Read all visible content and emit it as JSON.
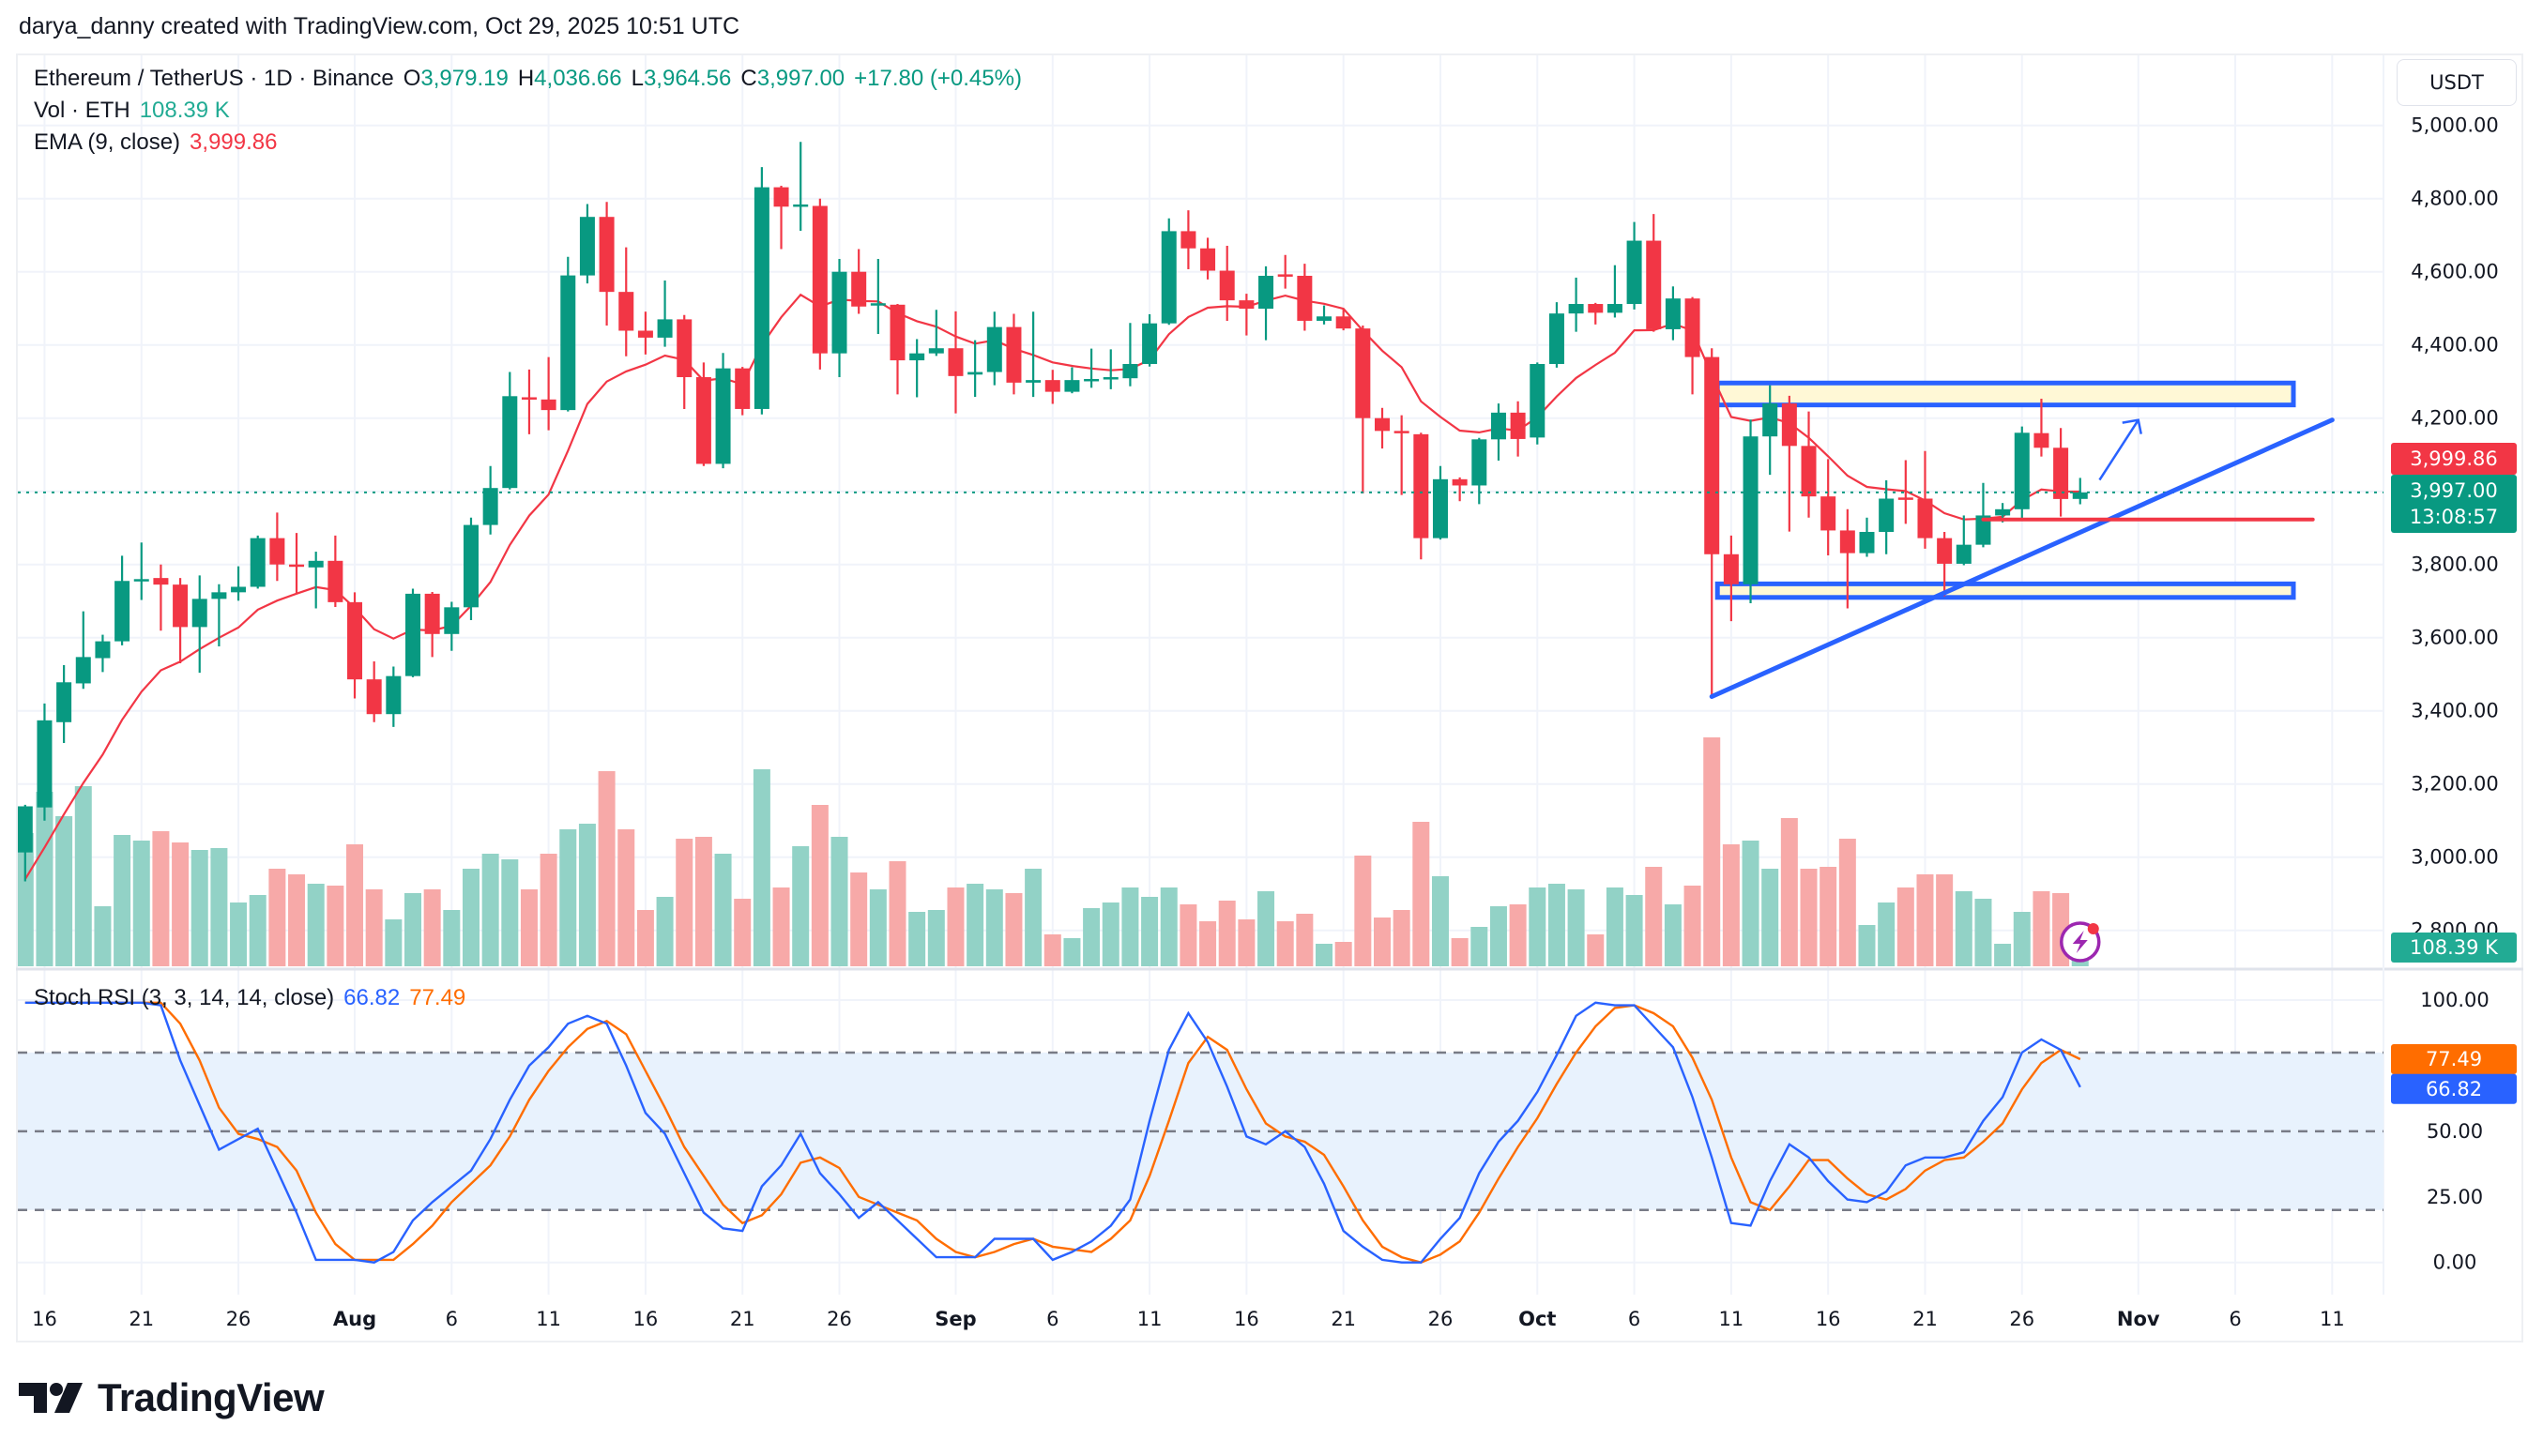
{
  "attribution": "darya_danny created with TradingView.com, Oct 29, 2025 10:51 UTC",
  "legend": {
    "symbol": "Ethereum / TetherUS · 1D · Binance",
    "ohlc": [
      {
        "k": "O",
        "v": "3,979.19"
      },
      {
        "k": "H",
        "v": "4,036.66"
      },
      {
        "k": "L",
        "v": "3,964.56"
      },
      {
        "k": "C",
        "v": "3,997.00"
      }
    ],
    "change": "+17.80 (+0.45%)",
    "vol_label": "Vol · ETH",
    "vol_value": "108.39 K",
    "ema_label": "EMA (9, close)",
    "ema_value": "3,999.86"
  },
  "price_axis": {
    "currency": "USDT",
    "ema_badge": "3,999.86",
    "price_badge": "3,997.00",
    "countdown": "13:08:57",
    "volume_badge": "108.39 K"
  },
  "stoch": {
    "label": "Stoch RSI (3, 3, 14, 14, close)",
    "k_value": "66.82",
    "d_value": "77.49",
    "k_badge": "66.82",
    "d_badge": "77.49",
    "ticks": [
      {
        "label": "100.00",
        "value": 100
      },
      {
        "label": "50.00",
        "value": 50
      },
      {
        "label": "25.00",
        "value": 25
      },
      {
        "label": "0.00",
        "value": 0
      }
    ],
    "levels": [
      80,
      50,
      20
    ]
  },
  "brand": "TradingView",
  "colors": {
    "up": "#089981",
    "down": "#f23645",
    "volume_up": "#92d2c6",
    "volume_down": "#f7a9a8",
    "ema": "#f23645",
    "stoch_k": "#2962ff",
    "stoch_d": "#ff6d00",
    "drawing": "#2962ff",
    "zone_fill": "#fff8d6",
    "stoch_band": "#e8f2fd",
    "alert_icon": "#9c27b0"
  },
  "icons": {
    "alert": "lightning-alert-icon",
    "logo": "tradingview-logo-icon"
  },
  "chart_data": {
    "type": "candlestick",
    "title": "",
    "xlabel": "",
    "ylabel": "USDT",
    "ylim": [
      2750,
      5100
    ],
    "grid": true,
    "y_ticks": [
      {
        "label": "5,000.00",
        "value": 5000
      },
      {
        "label": "4,800.00",
        "value": 4800
      },
      {
        "label": "4,600.00",
        "value": 4600
      },
      {
        "label": "4,400.00",
        "value": 4400
      },
      {
        "label": "4,200.00",
        "value": 4200
      },
      {
        "label": "3,800.00",
        "value": 3800
      },
      {
        "label": "3,600.00",
        "value": 3600
      },
      {
        "label": "3,400.00",
        "value": 3400
      },
      {
        "label": "3,200.00",
        "value": 3200
      },
      {
        "label": "3,000.00",
        "value": 3000
      },
      {
        "label": "2,800.00",
        "value": 2800
      }
    ],
    "x_ticks": [
      {
        "label": "16",
        "date": "2025-07-16"
      },
      {
        "label": "21",
        "date": "2025-07-21"
      },
      {
        "label": "26",
        "date": "2025-07-26"
      },
      {
        "label": "Aug",
        "date": "2025-08-01",
        "bold": true
      },
      {
        "label": "6",
        "date": "2025-08-06"
      },
      {
        "label": "11",
        "date": "2025-08-11"
      },
      {
        "label": "16",
        "date": "2025-08-16"
      },
      {
        "label": "21",
        "date": "2025-08-21"
      },
      {
        "label": "26",
        "date": "2025-08-26"
      },
      {
        "label": "Sep",
        "date": "2025-09-01",
        "bold": true
      },
      {
        "label": "6",
        "date": "2025-09-06"
      },
      {
        "label": "11",
        "date": "2025-09-11"
      },
      {
        "label": "16",
        "date": "2025-09-16"
      },
      {
        "label": "21",
        "date": "2025-09-21"
      },
      {
        "label": "26",
        "date": "2025-09-26"
      },
      {
        "label": "Oct",
        "date": "2025-10-01",
        "bold": true
      },
      {
        "label": "6",
        "date": "2025-10-06"
      },
      {
        "label": "11",
        "date": "2025-10-11"
      },
      {
        "label": "16",
        "date": "2025-10-16"
      },
      {
        "label": "21",
        "date": "2025-10-21"
      },
      {
        "label": "26",
        "date": "2025-10-26"
      },
      {
        "label": "Nov",
        "date": "2025-11-01",
        "bold": true
      },
      {
        "label": "6",
        "date": "2025-11-06"
      },
      {
        "label": "11",
        "date": "2025-11-11"
      }
    ],
    "candle_fields": [
      "date",
      "open",
      "high",
      "low",
      "close",
      "volume_k"
    ],
    "candles": [
      [
        "2025-07-15",
        3013,
        3143,
        2934,
        3139,
        710
      ],
      [
        "2025-07-16",
        3136,
        3420,
        3100,
        3374,
        930
      ],
      [
        "2025-07-17",
        3369,
        3525,
        3312,
        3478,
        800
      ],
      [
        "2025-07-18",
        3475,
        3672,
        3460,
        3547,
        960
      ],
      [
        "2025-07-19",
        3544,
        3608,
        3506,
        3590,
        320
      ],
      [
        "2025-07-20",
        3590,
        3824,
        3579,
        3755,
        700
      ],
      [
        "2025-07-21",
        3755,
        3860,
        3703,
        3760,
        670
      ],
      [
        "2025-07-22",
        3763,
        3800,
        3619,
        3745,
        720
      ],
      [
        "2025-07-23",
        3745,
        3763,
        3530,
        3629,
        660
      ],
      [
        "2025-07-24",
        3629,
        3770,
        3504,
        3706,
        620
      ],
      [
        "2025-07-25",
        3706,
        3746,
        3576,
        3724,
        630
      ],
      [
        "2025-07-26",
        3724,
        3795,
        3701,
        3739,
        340
      ],
      [
        "2025-07-27",
        3739,
        3879,
        3734,
        3872,
        380
      ],
      [
        "2025-07-28",
        3872,
        3942,
        3755,
        3800,
        520
      ],
      [
        "2025-07-29",
        3800,
        3886,
        3720,
        3797,
        490
      ],
      [
        "2025-07-30",
        3792,
        3835,
        3680,
        3810,
        440
      ],
      [
        "2025-07-31",
        3810,
        3879,
        3684,
        3697,
        430
      ],
      [
        "2025-08-01",
        3697,
        3724,
        3434,
        3486,
        650
      ],
      [
        "2025-08-02",
        3486,
        3535,
        3369,
        3391,
        410
      ],
      [
        "2025-08-03",
        3391,
        3521,
        3356,
        3495,
        250
      ],
      [
        "2025-08-04",
        3495,
        3734,
        3492,
        3720,
        390
      ],
      [
        "2025-08-05",
        3720,
        3725,
        3547,
        3610,
        410
      ],
      [
        "2025-08-06",
        3610,
        3698,
        3564,
        3683,
        300
      ],
      [
        "2025-08-07",
        3683,
        3928,
        3648,
        3908,
        520
      ],
      [
        "2025-08-08",
        3908,
        4069,
        3882,
        4009,
        600
      ],
      [
        "2025-08-09",
        4009,
        4326,
        4005,
        4260,
        570
      ],
      [
        "2025-08-10",
        4257,
        4333,
        4156,
        4254,
        410
      ],
      [
        "2025-08-11",
        4251,
        4367,
        4167,
        4222,
        600
      ],
      [
        "2025-08-12",
        4222,
        4641,
        4218,
        4590,
        730
      ],
      [
        "2025-08-13",
        4590,
        4785,
        4568,
        4750,
        760
      ],
      [
        "2025-08-14",
        4750,
        4791,
        4453,
        4545,
        1040
      ],
      [
        "2025-08-15",
        4545,
        4667,
        4369,
        4439,
        730
      ],
      [
        "2025-08-16",
        4439,
        4491,
        4374,
        4420,
        300
      ],
      [
        "2025-08-17",
        4420,
        4576,
        4395,
        4470,
        370
      ],
      [
        "2025-08-18",
        4470,
        4482,
        4225,
        4312,
        680
      ],
      [
        "2025-08-19",
        4312,
        4352,
        4069,
        4075,
        690
      ],
      [
        "2025-08-20",
        4075,
        4378,
        4063,
        4336,
        600
      ],
      [
        "2025-08-21",
        4336,
        4340,
        4208,
        4225,
        360
      ],
      [
        "2025-08-22",
        4225,
        4886,
        4210,
        4831,
        1050
      ],
      [
        "2025-08-23",
        4831,
        4835,
        4662,
        4778,
        420
      ],
      [
        "2025-08-24",
        4780,
        4955,
        4712,
        4784,
        640
      ],
      [
        "2025-08-25",
        4780,
        4800,
        4333,
        4377,
        860
      ],
      [
        "2025-08-26",
        4377,
        4635,
        4312,
        4600,
        690
      ],
      [
        "2025-08-27",
        4600,
        4662,
        4485,
        4505,
        500
      ],
      [
        "2025-08-28",
        4510,
        4635,
        4430,
        4514,
        410
      ],
      [
        "2025-08-29",
        4510,
        4512,
        4265,
        4358,
        560
      ],
      [
        "2025-08-30",
        4358,
        4416,
        4257,
        4377,
        290
      ],
      [
        "2025-08-31",
        4377,
        4496,
        4370,
        4391,
        300
      ],
      [
        "2025-09-01",
        4391,
        4492,
        4213,
        4315,
        420
      ],
      [
        "2025-09-02",
        4319,
        4413,
        4258,
        4326,
        440
      ],
      [
        "2025-09-03",
        4326,
        4491,
        4290,
        4449,
        410
      ],
      [
        "2025-09-04",
        4449,
        4485,
        4265,
        4297,
        390
      ],
      [
        "2025-09-05",
        4297,
        4491,
        4258,
        4304,
        520
      ],
      [
        "2025-09-06",
        4304,
        4332,
        4239,
        4272,
        170
      ],
      [
        "2025-09-07",
        4272,
        4339,
        4268,
        4304,
        150
      ],
      [
        "2025-09-08",
        4304,
        4390,
        4283,
        4307,
        310
      ],
      [
        "2025-09-09",
        4309,
        4388,
        4279,
        4312,
        340
      ],
      [
        "2025-09-10",
        4309,
        4460,
        4287,
        4348,
        420
      ],
      [
        "2025-09-11",
        4348,
        4484,
        4341,
        4459,
        370
      ],
      [
        "2025-09-12",
        4459,
        4746,
        4455,
        4711,
        420
      ],
      [
        "2025-09-13",
        4711,
        4768,
        4607,
        4664,
        330
      ],
      [
        "2025-09-14",
        4664,
        4693,
        4579,
        4603,
        240
      ],
      [
        "2025-09-15",
        4603,
        4671,
        4466,
        4522,
        350
      ],
      [
        "2025-09-16",
        4522,
        4540,
        4426,
        4499,
        250
      ],
      [
        "2025-09-17",
        4499,
        4615,
        4413,
        4589,
        400
      ],
      [
        "2025-09-18",
        4593,
        4646,
        4554,
        4589,
        240
      ],
      [
        "2025-09-19",
        4589,
        4622,
        4439,
        4466,
        280
      ],
      [
        "2025-09-20",
        4466,
        4508,
        4456,
        4478,
        120
      ],
      [
        "2025-09-21",
        4478,
        4499,
        4440,
        4445,
        130
      ],
      [
        "2025-09-22",
        4445,
        4453,
        3994,
        4200,
        590
      ],
      [
        "2025-09-23",
        4200,
        4228,
        4117,
        4165,
        260
      ],
      [
        "2025-09-24",
        4165,
        4208,
        3990,
        4159,
        300
      ],
      [
        "2025-09-25",
        4156,
        4160,
        3814,
        3872,
        770
      ],
      [
        "2025-09-26",
        3872,
        4069,
        3868,
        4033,
        480
      ],
      [
        "2025-09-27",
        4033,
        4038,
        3973,
        4016,
        150
      ],
      [
        "2025-09-28",
        4016,
        4146,
        3965,
        4142,
        210
      ],
      [
        "2025-09-29",
        4142,
        4240,
        4084,
        4215,
        320
      ],
      [
        "2025-09-30",
        4215,
        4246,
        4095,
        4143,
        330
      ],
      [
        "2025-10-01",
        4147,
        4352,
        4128,
        4348,
        420
      ],
      [
        "2025-10-02",
        4348,
        4517,
        4338,
        4486,
        440
      ],
      [
        "2025-10-03",
        4486,
        4584,
        4436,
        4512,
        410
      ],
      [
        "2025-10-04",
        4512,
        4515,
        4456,
        4488,
        170
      ],
      [
        "2025-10-05",
        4488,
        4618,
        4475,
        4512,
        420
      ],
      [
        "2025-10-06",
        4512,
        4736,
        4497,
        4685,
        380
      ],
      [
        "2025-10-07",
        4685,
        4758,
        4436,
        4443,
        530
      ],
      [
        "2025-10-08",
        4443,
        4560,
        4413,
        4527,
        330
      ],
      [
        "2025-10-09",
        4527,
        4531,
        4265,
        4367,
        430
      ],
      [
        "2025-10-10",
        4367,
        4391,
        3439,
        3828,
        1220
      ],
      [
        "2025-10-11",
        3828,
        3879,
        3645,
        3746,
        650
      ],
      [
        "2025-10-12",
        3746,
        4196,
        3694,
        4150,
        670
      ],
      [
        "2025-10-13",
        4150,
        4290,
        4045,
        4240,
        520
      ],
      [
        "2025-10-14",
        4240,
        4261,
        3890,
        4124,
        790
      ],
      [
        "2025-10-15",
        4124,
        4218,
        3928,
        3986,
        520
      ],
      [
        "2025-10-16",
        3986,
        4088,
        3825,
        3893,
        530
      ],
      [
        "2025-10-17",
        3893,
        3951,
        3680,
        3831,
        680
      ],
      [
        "2025-10-18",
        3831,
        3928,
        3821,
        3889,
        220
      ],
      [
        "2025-10-19",
        3889,
        4030,
        3828,
        3980,
        340
      ],
      [
        "2025-10-20",
        3983,
        4085,
        3911,
        3980,
        420
      ],
      [
        "2025-10-21",
        3980,
        4110,
        3843,
        3872,
        490
      ],
      [
        "2025-10-22",
        3872,
        3889,
        3713,
        3802,
        490
      ],
      [
        "2025-10-23",
        3802,
        3934,
        3798,
        3854,
        400
      ],
      [
        "2025-10-24",
        3854,
        4023,
        3847,
        3934,
        360
      ],
      [
        "2025-10-25",
        3934,
        3968,
        3915,
        3951,
        120
      ],
      [
        "2025-10-26",
        3951,
        4177,
        3920,
        4160,
        290
      ],
      [
        "2025-10-27",
        4159,
        4253,
        4095,
        4119,
        400
      ],
      [
        "2025-10-28",
        4119,
        4173,
        3931,
        3979,
        390
      ],
      [
        "2025-10-29",
        3979.19,
        4036.66,
        3964.56,
        3997.0,
        108.39
      ]
    ],
    "ema": {
      "period": 9,
      "last": 3999.86
    },
    "current_price": 3997.0,
    "stoch_rsi": {
      "ylim": [
        0,
        100
      ],
      "k": [
        99,
        99,
        99,
        99,
        99,
        99,
        99,
        98,
        77,
        60,
        43,
        47,
        51,
        35,
        19,
        1,
        1,
        1,
        0,
        4,
        16,
        23,
        29,
        35,
        47,
        62,
        75,
        82,
        91,
        94,
        91,
        75,
        57,
        49,
        34,
        19,
        13,
        12,
        29,
        37,
        49,
        34,
        26,
        17,
        23,
        16,
        9,
        2,
        2,
        2,
        9,
        9,
        9,
        1,
        4,
        8,
        14,
        24,
        54,
        81,
        95,
        84,
        67,
        48,
        45,
        50,
        44,
        30,
        12,
        6,
        1,
        0,
        0,
        9,
        17,
        34,
        46,
        54,
        65,
        79,
        94,
        99,
        98,
        98,
        90,
        82,
        63,
        40,
        15,
        14,
        31,
        45,
        40,
        31,
        24,
        23,
        27,
        37,
        40,
        40,
        42,
        54,
        63,
        80,
        85,
        81,
        66.82
      ],
      "d": [
        99,
        99,
        99,
        99,
        99,
        99,
        99,
        99,
        91,
        77,
        59,
        49,
        47,
        44,
        35,
        19,
        7,
        1,
        1,
        1,
        7,
        14,
        23,
        30,
        37,
        48,
        62,
        73,
        82,
        89,
        92,
        87,
        73,
        59,
        44,
        33,
        22,
        15,
        18,
        26,
        38,
        40,
        36,
        25,
        22,
        19,
        16,
        9,
        4,
        2,
        4,
        7,
        9,
        6,
        5,
        4,
        9,
        16,
        33,
        54,
        76,
        86,
        81,
        66,
        53,
        48,
        46,
        41,
        29,
        16,
        6,
        2,
        0,
        3,
        8,
        19,
        32,
        44,
        55,
        68,
        80,
        90,
        97,
        98,
        95,
        90,
        78,
        62,
        40,
        23,
        20,
        29,
        39,
        39,
        32,
        26,
        24,
        28,
        35,
        39,
        40,
        46,
        53,
        66,
        76,
        81,
        77.49
      ]
    },
    "drawings": [
      {
        "type": "zone",
        "from": "2025-10-10",
        "to": "2025-11-09",
        "low": 4236,
        "high": 4296
      },
      {
        "type": "zone",
        "from": "2025-10-10",
        "to": "2025-11-09",
        "low": 3710,
        "high": 3747
      },
      {
        "type": "trendline",
        "from": [
          "2025-10-10",
          3439
        ],
        "to": [
          "2025-11-11",
          4195
        ]
      },
      {
        "type": "hline",
        "from": "2025-10-24",
        "to": "2025-11-10",
        "price": 3923
      },
      {
        "type": "arrow",
        "from": [
          "2025-10-30",
          4031
        ],
        "to": [
          "2025-11-01",
          4195
        ]
      }
    ]
  }
}
